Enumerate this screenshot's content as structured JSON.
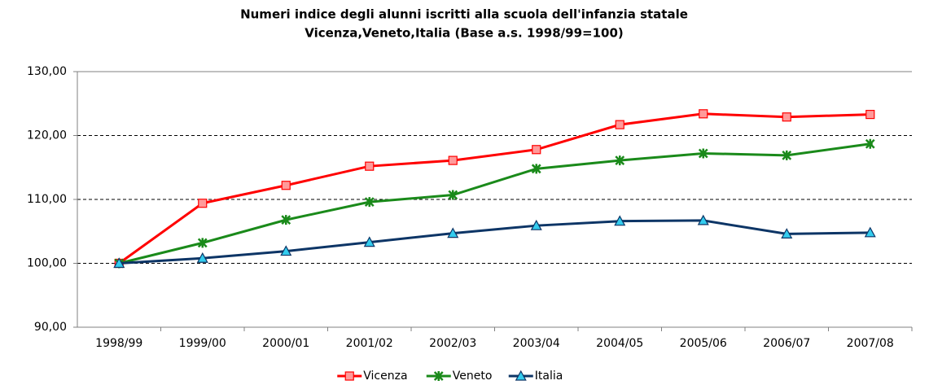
{
  "chart_data": {
    "type": "line",
    "title": [
      "Numeri indice degli alunni iscritti alla scuola dell'infanzia statale",
      "Vicenza,Veneto,Italia (Base a.s. 1998/99=100)"
    ],
    "categories": [
      "1998/99",
      "1999/00",
      "2000/01",
      "2001/02",
      "2002/03",
      "2003/04",
      "2004/05",
      "2005/06",
      "2006/07",
      "2007/08"
    ],
    "series": [
      {
        "name": "Vicenza",
        "color": "#ff0000",
        "marker": "square",
        "values": [
          100,
          109.4,
          112.2,
          115.2,
          116.1,
          117.8,
          121.7,
          123.4,
          122.9,
          123.3
        ]
      },
      {
        "name": "Veneto",
        "color": "#1a8a1a",
        "marker": "star",
        "values": [
          100,
          103.2,
          106.8,
          109.6,
          110.7,
          114.8,
          116.1,
          117.2,
          116.9,
          118.7
        ]
      },
      {
        "name": "Italia",
        "color": "#0d3566",
        "marker": "triangle",
        "values": [
          100,
          100.8,
          101.9,
          103.3,
          104.7,
          105.9,
          106.6,
          106.7,
          104.6,
          104.8
        ]
      }
    ],
    "ylim": [
      90,
      130
    ],
    "yticks": [
      {
        "value": 90,
        "label": "90,00"
      },
      {
        "value": 100,
        "label": "100,00"
      },
      {
        "value": 110,
        "label": "110,00"
      },
      {
        "value": 120,
        "label": "120,00"
      },
      {
        "value": 130,
        "label": "130,00"
      }
    ],
    "grid": true,
    "legend": "bottom"
  }
}
